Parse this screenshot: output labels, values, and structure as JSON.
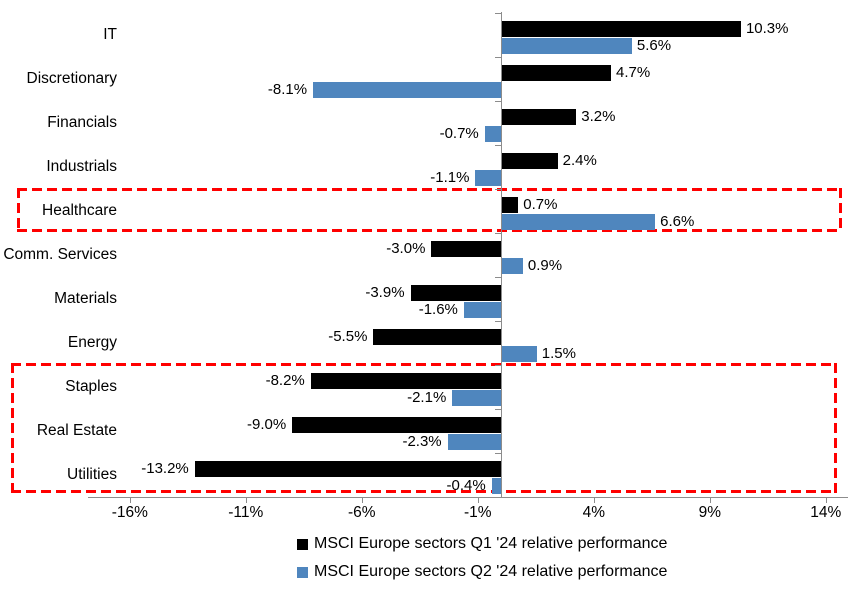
{
  "page": {
    "background": "#ffffff"
  },
  "chart_data": {
    "type": "bar",
    "orientation": "horizontal",
    "title": "",
    "categories": [
      "IT",
      "Discretionary",
      "Financials",
      "Industrials",
      "Healthcare",
      "Comm. Services",
      "Materials",
      "Energy",
      "Staples",
      "Real Estate",
      "Utilities"
    ],
    "series": [
      {
        "name": "MSCI Europe sectors Q1 '24 relative performance",
        "color": "#000000",
        "values": [
          10.3,
          4.7,
          3.2,
          2.4,
          0.7,
          -3.0,
          -3.9,
          -5.5,
          -8.2,
          -9.0,
          -13.2
        ],
        "labels": [
          "10.3%",
          "4.7%",
          "3.2%",
          "2.4%",
          "0.7%",
          "-3.0%",
          "-3.9%",
          "-5.5%",
          "-8.2%",
          "-9.0%",
          "-13.2%"
        ]
      },
      {
        "name": "MSCI Europe sectors Q2 '24 relative performance",
        "color": "#4F86BE",
        "values": [
          5.6,
          -8.1,
          -0.7,
          -1.1,
          6.6,
          0.9,
          -1.6,
          1.5,
          -2.1,
          -2.3,
          -0.4
        ],
        "labels": [
          "5.6%",
          "-8.1%",
          "-0.7%",
          "-1.1%",
          "6.6%",
          "0.9%",
          "-1.6%",
          "1.5%",
          "-2.1%",
          "-2.3%",
          "-0.4%"
        ]
      }
    ],
    "x_axis": {
      "tick_labels": [
        "-16%",
        "-11%",
        "-6%",
        "-1%",
        "4%",
        "9%",
        "14%"
      ],
      "tick_values": [
        -16,
        -11,
        -6,
        -1,
        4,
        9,
        14
      ],
      "min": -17.8,
      "max": 15.0
    },
    "axis_color": "#8c8c8c",
    "grid": false,
    "legend_position": "bottom",
    "data_labels": true,
    "highlights": [
      {
        "categories": [
          "Healthcare"
        ],
        "color": "#FF0000",
        "style": "dashed"
      },
      {
        "categories": [
          "Staples",
          "Real Estate",
          "Utilities"
        ],
        "color": "#FF0000",
        "style": "dashed"
      }
    ]
  }
}
